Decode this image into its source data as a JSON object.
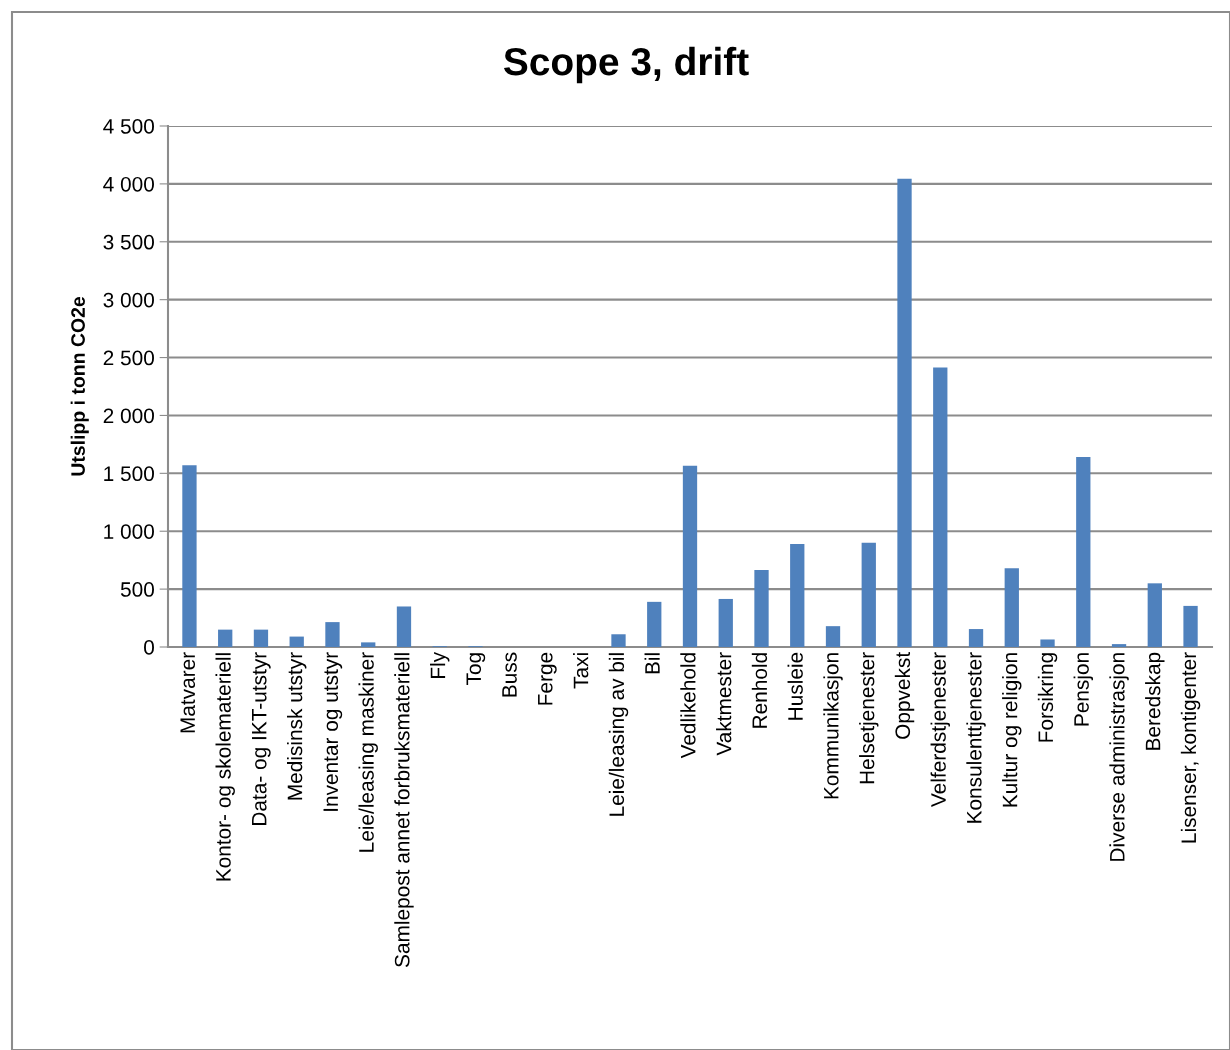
{
  "chart_data": {
    "type": "bar",
    "title": "Scope 3, drift",
    "ylabel": "Utslipp i tonn CO2e",
    "categories": [
      "Matvarer",
      "Kontor- og skolemateriell",
      "Data- og IKT-utstyr",
      "Medisinsk utstyr",
      "Inventar og utstyr",
      "Leie/leasing maskiner",
      "Samlepost annet forbruksmateriell",
      "Fly",
      "Tog",
      "Buss",
      "Ferge",
      "Taxi",
      "Leie/leasing av bil",
      "Bil",
      "Vedlikehold",
      "Vaktmester",
      "Renhold",
      "Husleie",
      "Kommunikasjon",
      "Helsetjenester",
      "Oppvekst",
      "Velferdstjenester",
      "Konsulenttjenester",
      "Kultur og religion",
      "Forsikring",
      "Pensjon",
      "Diverse administrasjon",
      "Beredskap",
      "Lisenser, kontigenter"
    ],
    "values": [
      1570,
      150,
      150,
      90,
      215,
      40,
      350,
      7,
      7,
      0,
      0,
      0,
      110,
      390,
      1565,
      415,
      665,
      890,
      180,
      900,
      4045,
      2415,
      155,
      680,
      65,
      1640,
      25,
      550,
      355
    ],
    "color": "#4f81bd",
    "ylim": [
      0,
      4500
    ],
    "yticks": [
      0,
      {
        "value": 500,
        "label": "500"
      },
      {
        "value": 1000,
        "label": "1 000"
      },
      {
        "value": 1500,
        "label": "1 500"
      },
      {
        "value": 2000,
        "label": "2 000"
      },
      {
        "value": 2500,
        "label": "2 500"
      },
      {
        "value": 3000,
        "label": "3 000"
      },
      {
        "value": 3500,
        "label": "3 500"
      },
      {
        "value": 4000,
        "label": "4 000"
      },
      {
        "value": 4500,
        "label": "4 500"
      }
    ],
    "grid": "y",
    "legend": false
  }
}
